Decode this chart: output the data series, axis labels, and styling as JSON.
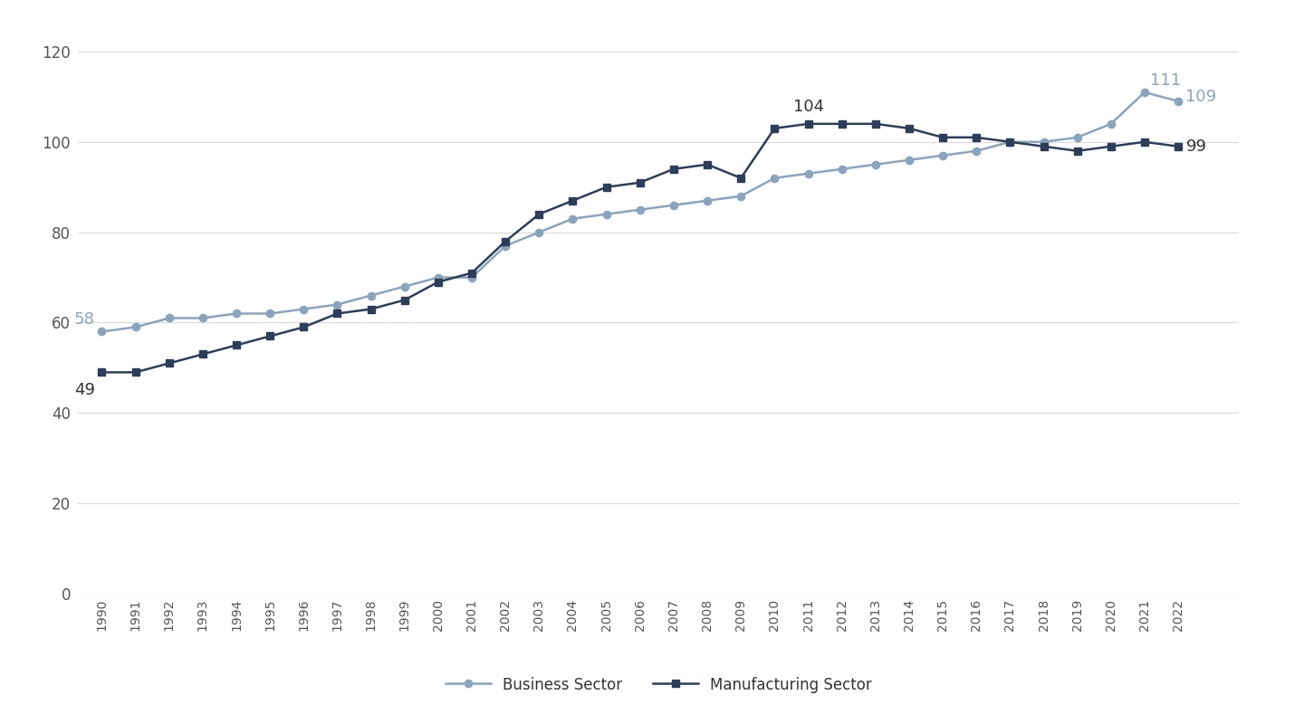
{
  "years": [
    1990,
    1991,
    1992,
    1993,
    1994,
    1995,
    1996,
    1997,
    1998,
    1999,
    2000,
    2001,
    2002,
    2003,
    2004,
    2005,
    2006,
    2007,
    2008,
    2009,
    2010,
    2011,
    2012,
    2013,
    2014,
    2015,
    2016,
    2017,
    2018,
    2019,
    2020,
    2021,
    2022
  ],
  "business_sector": [
    58,
    59,
    61,
    61,
    62,
    62,
    63,
    64,
    66,
    68,
    70,
    70,
    77,
    80,
    83,
    84,
    85,
    86,
    87,
    88,
    92,
    93,
    94,
    95,
    96,
    97,
    98,
    100,
    100,
    101,
    104,
    111,
    109
  ],
  "manufacturing_sector": [
    49,
    49,
    51,
    53,
    55,
    57,
    59,
    62,
    63,
    65,
    69,
    71,
    78,
    84,
    87,
    90,
    91,
    94,
    95,
    92,
    103,
    104,
    104,
    104,
    103,
    101,
    101,
    100,
    99,
    98,
    99,
    100,
    99
  ],
  "business_color": "#8BA4BE",
  "manufacturing_color": "#2C3E5A",
  "legend_labels": [
    "Business Sector",
    "Manufacturing Sector"
  ],
  "annotation_business_1990": "58",
  "annotation_manufacturing_1990": "49",
  "annotation_manufacturing_2011": "104",
  "annotation_business_2021": "111",
  "annotation_business_2022": "109",
  "annotation_manufacturing_2022": "99",
  "ylim": [
    0,
    125
  ],
  "yticks": [
    0,
    20,
    40,
    60,
    80,
    100,
    120
  ],
  "background_color": "#FFFFFF",
  "grid_color": "#D8D8D8"
}
